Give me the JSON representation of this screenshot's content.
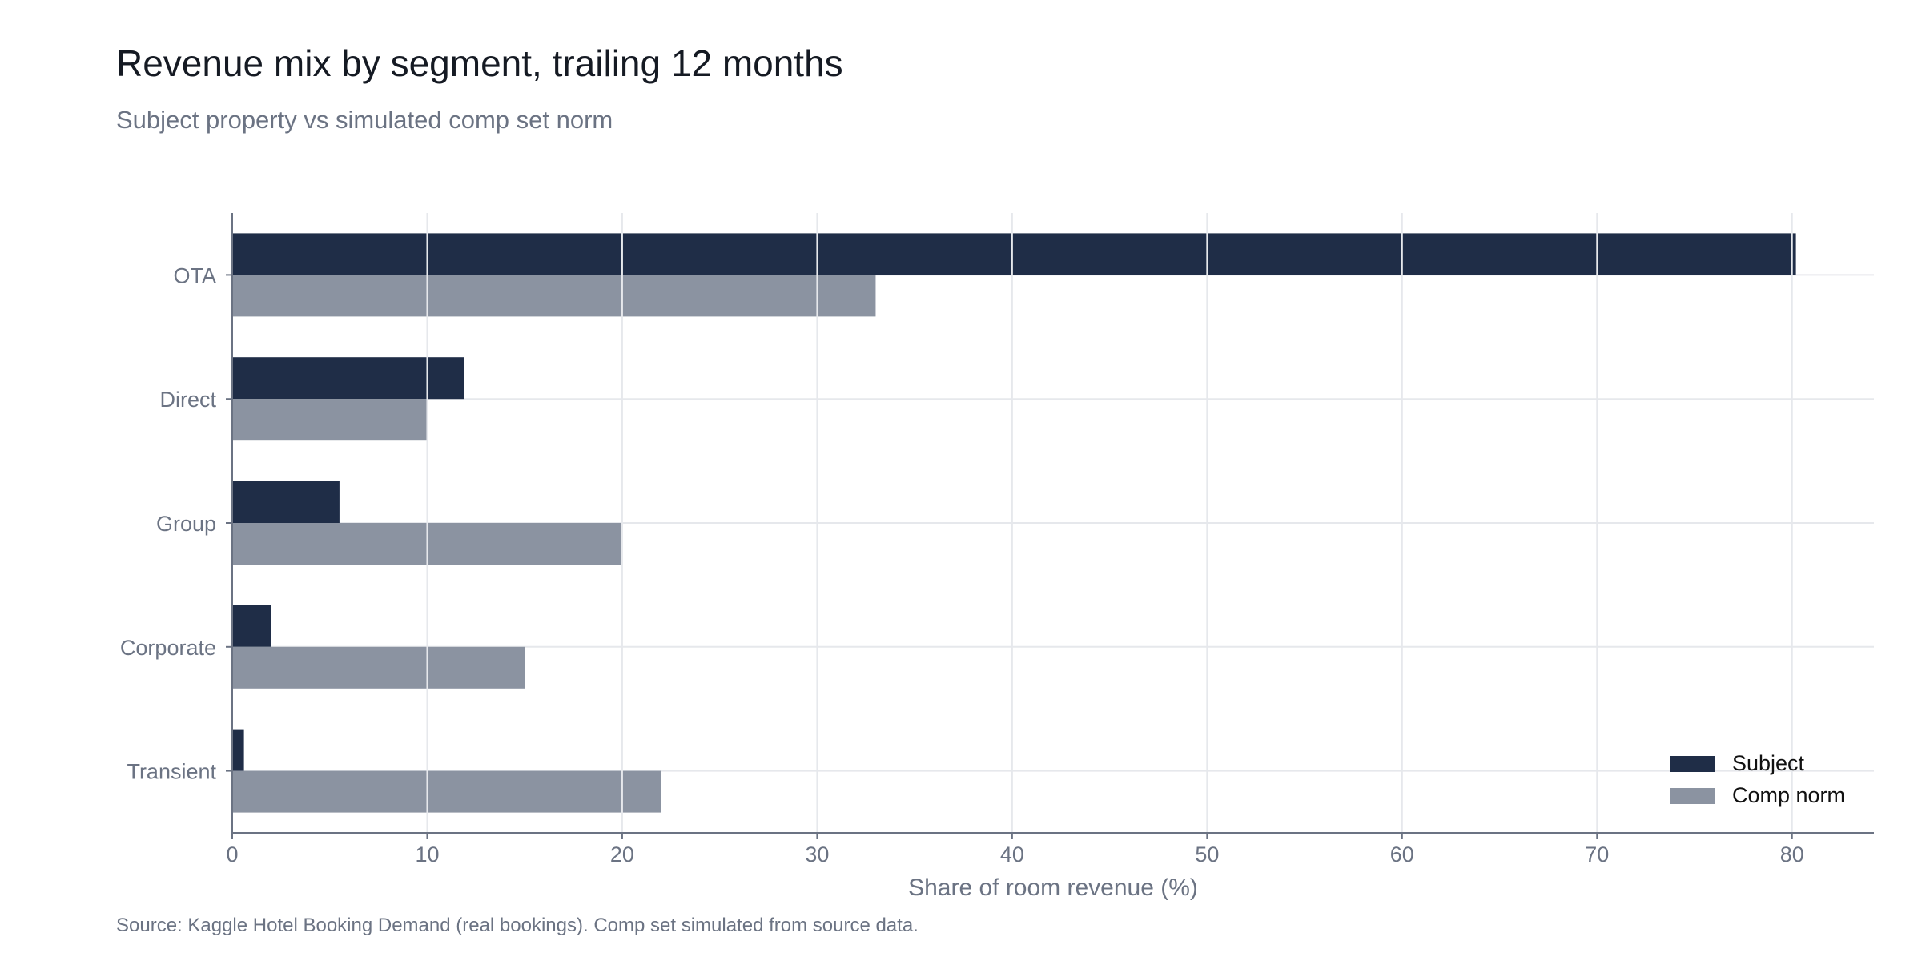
{
  "title": "Revenue mix by segment, trailing 12 months",
  "subtitle": "Subject property vs simulated comp set norm",
  "source": "Source: Kaggle Hotel Booking Demand (real bookings). Comp set simulated from source data.",
  "chart_data": {
    "type": "bar",
    "orientation": "horizontal",
    "categories": [
      "OTA",
      "Direct",
      "Group",
      "Corporate",
      "Transient"
    ],
    "series": [
      {
        "name": "Subject",
        "values": [
          80.2,
          11.9,
          5.5,
          2.0,
          0.6
        ],
        "color": "#1f2d47"
      },
      {
        "name": "Comp norm",
        "values": [
          33.0,
          10.0,
          20.0,
          15.0,
          22.0
        ],
        "color": "#8b93a1"
      }
    ],
    "xlabel": "Share of room revenue (%)",
    "ylabel": "",
    "xlim": [
      0,
      84.2
    ],
    "xticks": [
      0,
      10,
      20,
      30,
      40,
      50,
      60,
      70,
      80
    ],
    "grid": true,
    "legend_position": "bottom-right"
  }
}
